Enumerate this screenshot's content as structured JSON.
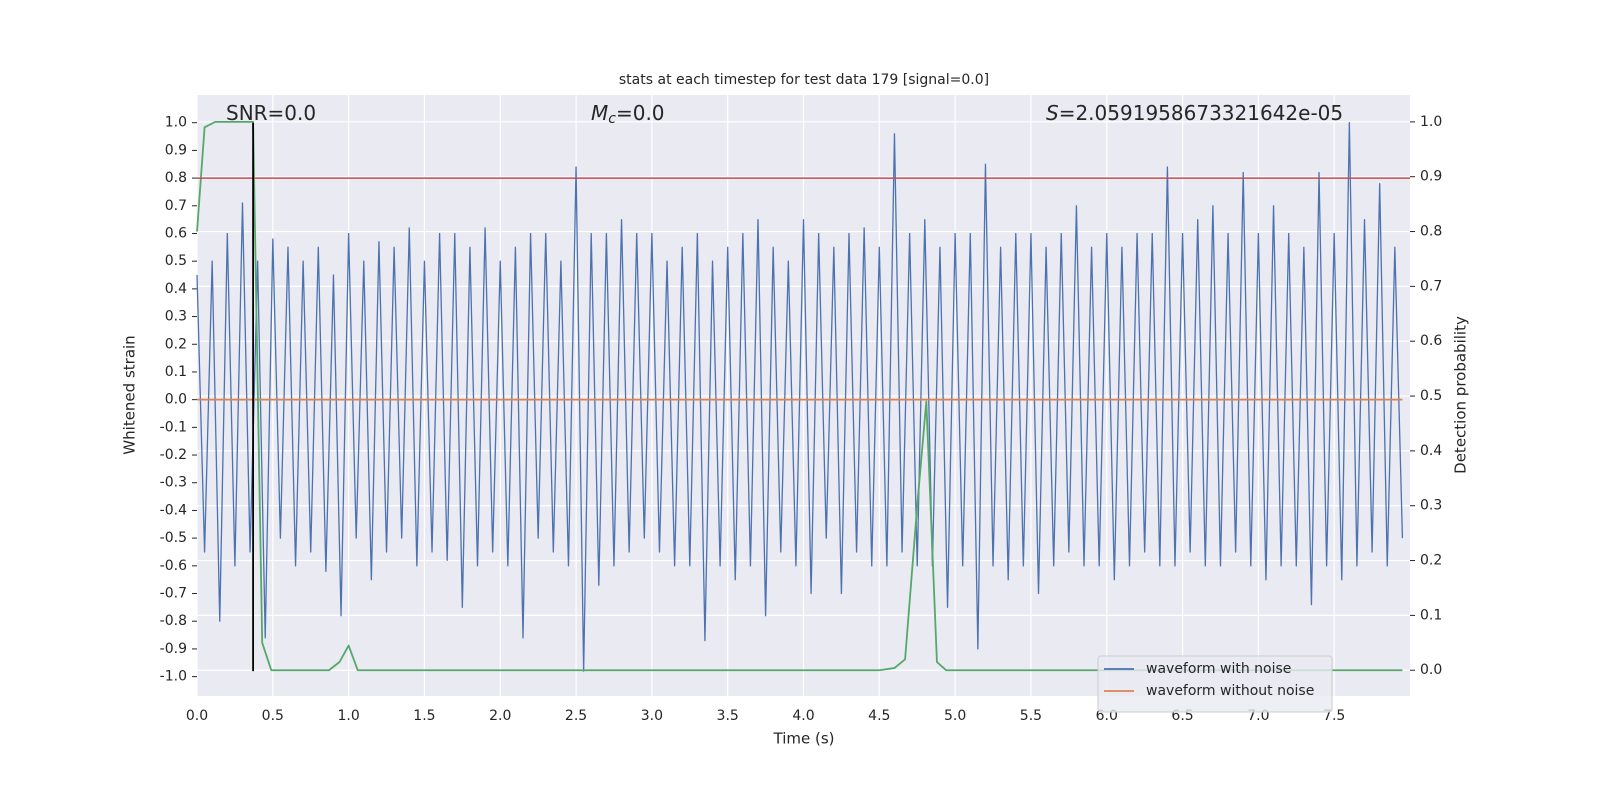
{
  "chart_data": {
    "type": "line",
    "title": "stats at each timestep for test data 179 [signal=0.0]",
    "x_label": "Time (s)",
    "y_label": "Whitened strain",
    "y2_label": "Detection probability",
    "annotations": [
      {
        "text": "SNR=0.0"
      },
      {
        "symbol": "M",
        "subscript": "c",
        "text": "=0.0"
      },
      {
        "symbol": "S",
        "text": "=2.0591958673321642e-05"
      }
    ],
    "xlim": [
      0,
      8.0
    ],
    "ylim": [
      -1.07,
      1.1
    ],
    "y2lim": [
      -0.047,
      1.049
    ],
    "xticks": [
      {
        "value": 0,
        "label": "0.0"
      },
      0.5,
      {
        "value": 1,
        "label": "1.0"
      },
      1.5,
      {
        "value": 2,
        "label": "2.0"
      },
      2.5,
      {
        "value": 3,
        "label": "3.0"
      },
      3.5,
      {
        "value": 4,
        "label": "4.0"
      },
      4.5,
      {
        "value": 5,
        "label": "5.0"
      },
      5.5,
      {
        "value": 6,
        "label": "6.0"
      },
      6.5,
      {
        "value": 7,
        "label": "7.0"
      },
      7.5
    ],
    "yticks": [
      {
        "value": -1,
        "label": "-1.0"
      },
      -0.9,
      -0.8,
      -0.7,
      -0.6,
      -0.5,
      -0.4,
      -0.3,
      -0.2,
      -0.1,
      {
        "value": 0,
        "label": "0.0"
      },
      0.1,
      0.2,
      0.3,
      0.4,
      0.5,
      0.6,
      0.7,
      0.8,
      0.9,
      {
        "value": 1,
        "label": "1.0"
      }
    ],
    "y2ticks": [
      {
        "value": 0,
        "label": "0.0"
      },
      0.1,
      0.2,
      0.3,
      0.4,
      0.5,
      0.6,
      0.7,
      0.8,
      0.9,
      {
        "value": 1,
        "label": "1.0"
      }
    ],
    "grid": true,
    "legend": "lower right",
    "series": [
      {
        "name": "waveform with noise",
        "color": "#4c72b0",
        "x": [
          0.0,
          0.05,
          0.1,
          0.15,
          0.2,
          0.25,
          0.3,
          0.35,
          0.4,
          0.45,
          0.5,
          0.55,
          0.6,
          0.65,
          0.7,
          0.75,
          0.8,
          0.85,
          0.9,
          0.95,
          1.0,
          1.05,
          1.1,
          1.15,
          1.2,
          1.25,
          1.3,
          1.35,
          1.4,
          1.45,
          1.5,
          1.55,
          1.6,
          1.65,
          1.7,
          1.75,
          1.8,
          1.85,
          1.9,
          1.95,
          2.0,
          2.05,
          2.1,
          2.15,
          2.2,
          2.25,
          2.3,
          2.35,
          2.4,
          2.45,
          2.5,
          2.55,
          2.6,
          2.65,
          2.7,
          2.75,
          2.8,
          2.85,
          2.9,
          2.95,
          3.0,
          3.05,
          3.1,
          3.15,
          3.2,
          3.25,
          3.3,
          3.35,
          3.4,
          3.45,
          3.5,
          3.55,
          3.6,
          3.65,
          3.7,
          3.75,
          3.8,
          3.85,
          3.9,
          3.95,
          4.0,
          4.05,
          4.1,
          4.15,
          4.2,
          4.25,
          4.3,
          4.35,
          4.4,
          4.45,
          4.5,
          4.55,
          4.6,
          4.65,
          4.7,
          4.75,
          4.8,
          4.85,
          4.9,
          4.95,
          5.0,
          5.05,
          5.1,
          5.15,
          5.2,
          5.25,
          5.3,
          5.35,
          5.4,
          5.45,
          5.5,
          5.55,
          5.6,
          5.65,
          5.7,
          5.75,
          5.8,
          5.85,
          5.9,
          5.95,
          6.0,
          6.05,
          6.1,
          6.15,
          6.2,
          6.25,
          6.3,
          6.35,
          6.4,
          6.45,
          6.5,
          6.55,
          6.6,
          6.65,
          6.7,
          6.75,
          6.8,
          6.85,
          6.9,
          6.95,
          7.0,
          7.05,
          7.1,
          7.15,
          7.2,
          7.25,
          7.3,
          7.35,
          7.4,
          7.45,
          7.5,
          7.55,
          7.6,
          7.65,
          7.7,
          7.75,
          7.8,
          7.85,
          7.9,
          7.95
        ],
        "values": [
          0.45,
          -0.55,
          0.5,
          -0.8,
          0.6,
          -0.6,
          0.71,
          -0.55,
          0.5,
          -0.86,
          0.58,
          -0.5,
          0.55,
          -0.6,
          0.5,
          -0.55,
          0.55,
          -0.62,
          0.45,
          -0.78,
          0.6,
          -0.5,
          0.5,
          -0.65,
          0.57,
          -0.55,
          0.55,
          -0.5,
          0.62,
          -0.6,
          0.5,
          -0.55,
          0.6,
          -0.58,
          0.6,
          -0.75,
          0.55,
          -0.6,
          0.62,
          -0.55,
          0.5,
          -0.6,
          0.55,
          -0.86,
          0.6,
          -0.5,
          0.6,
          -0.55,
          0.5,
          -0.6,
          0.84,
          -0.98,
          0.6,
          -0.67,
          0.6,
          -0.6,
          0.65,
          -0.55,
          0.6,
          -0.5,
          0.6,
          -0.55,
          0.5,
          -0.6,
          0.55,
          -0.6,
          0.6,
          -0.87,
          0.5,
          -0.6,
          0.55,
          -0.65,
          0.6,
          -0.6,
          0.65,
          -0.78,
          0.55,
          -0.55,
          0.5,
          -0.6,
          0.65,
          -0.7,
          0.6,
          -0.5,
          0.55,
          -0.7,
          0.6,
          -0.55,
          0.62,
          -0.6,
          0.55,
          -0.6,
          0.96,
          -0.55,
          0.6,
          -0.6,
          0.65,
          -0.6,
          0.55,
          -0.75,
          0.6,
          -0.6,
          0.6,
          -0.9,
          0.85,
          -0.6,
          0.55,
          -0.65,
          0.6,
          -0.6,
          0.6,
          -0.7,
          0.55,
          -0.6,
          0.6,
          -0.55,
          0.7,
          -0.6,
          0.55,
          -0.6,
          0.6,
          -0.65,
          0.55,
          -0.6,
          0.6,
          -0.55,
          0.6,
          -0.6,
          0.84,
          -0.6,
          0.6,
          -0.55,
          0.65,
          -0.6,
          0.7,
          -0.6,
          0.6,
          -0.55,
          0.82,
          -0.6,
          0.6,
          -0.65,
          0.7,
          -0.6,
          0.6,
          -0.6,
          0.55,
          -0.74,
          0.82,
          -0.6,
          0.6,
          -0.65,
          1.0,
          -0.6,
          0.65,
          -0.55,
          0.78,
          -0.6,
          0.55,
          -0.5
        ]
      },
      {
        "name": "waveform without noise",
        "color": "#dd8452",
        "x": [
          0.0,
          7.95
        ],
        "values": [
          0,
          0
        ]
      },
      {
        "color": "#55a868",
        "axis": "y2",
        "x": [
          0.0,
          0.05,
          0.12,
          0.37,
          0.43,
          0.49,
          0.87,
          0.94,
          1.0,
          1.06,
          4.5,
          4.6,
          4.67,
          4.75,
          4.81,
          4.88,
          4.94,
          7.95
        ],
        "values": [
          0.8,
          0.99,
          1.0,
          1.0,
          0.05,
          0.0,
          0.0,
          0.015,
          0.045,
          0.0,
          0.0,
          0.004,
          0.02,
          0.3,
          0.49,
          0.015,
          0.0,
          0.0
        ]
      }
    ],
    "hlines": [
      {
        "y": 0.8,
        "color": "#c44e52"
      }
    ],
    "vlines": [
      {
        "x": 0.37,
        "ymin": -0.98,
        "ymax": 1.0,
        "color": "#000000"
      }
    ]
  }
}
